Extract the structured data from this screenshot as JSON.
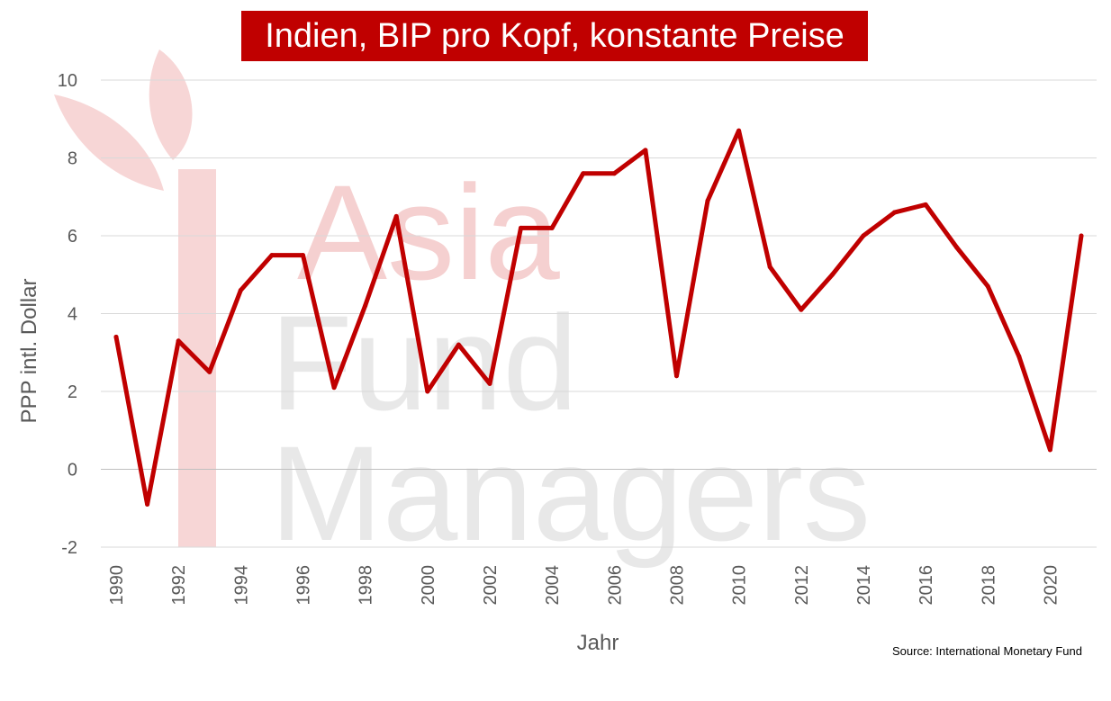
{
  "chart_data": {
    "type": "line",
    "title": "Indien, BIP pro Kopf, konstante Preise",
    "xlabel": "Jahr",
    "ylabel": "PPP intl. Dollar",
    "source": "Source: International Monetary Fund",
    "ylim": [
      -2,
      10
    ],
    "yticks": [
      -2,
      0,
      2,
      4,
      6,
      8,
      10
    ],
    "xlim": [
      1990,
      2021
    ],
    "xticks": [
      1990,
      1992,
      1994,
      1996,
      1998,
      2000,
      2002,
      2004,
      2006,
      2008,
      2010,
      2012,
      2014,
      2016,
      2018,
      2020
    ],
    "grid": true,
    "series": [
      {
        "color": "#c00000",
        "x": [
          1990,
          1991,
          1992,
          1993,
          1994,
          1995,
          1996,
          1997,
          1998,
          1999,
          2000,
          2001,
          2002,
          2003,
          2004,
          2005,
          2006,
          2007,
          2008,
          2009,
          2010,
          2011,
          2012,
          2013,
          2014,
          2015,
          2016,
          2017,
          2018,
          2019,
          2020,
          2021
        ],
        "values": [
          3.4,
          -0.9,
          3.3,
          2.5,
          4.6,
          5.5,
          5.5,
          2.1,
          4.2,
          6.5,
          2.0,
          3.2,
          2.2,
          6.2,
          6.2,
          7.6,
          7.6,
          8.2,
          2.4,
          6.9,
          8.7,
          5.2,
          4.1,
          5.0,
          6.0,
          6.6,
          6.8,
          5.7,
          4.7,
          2.9,
          0.5,
          6.0
        ]
      }
    ]
  },
  "watermark": {
    "line1": "Asia",
    "line2": "Fund",
    "line3": "Managers",
    "color_primary": "#f2c4c4",
    "color_secondary": "#e6e6e6"
  }
}
